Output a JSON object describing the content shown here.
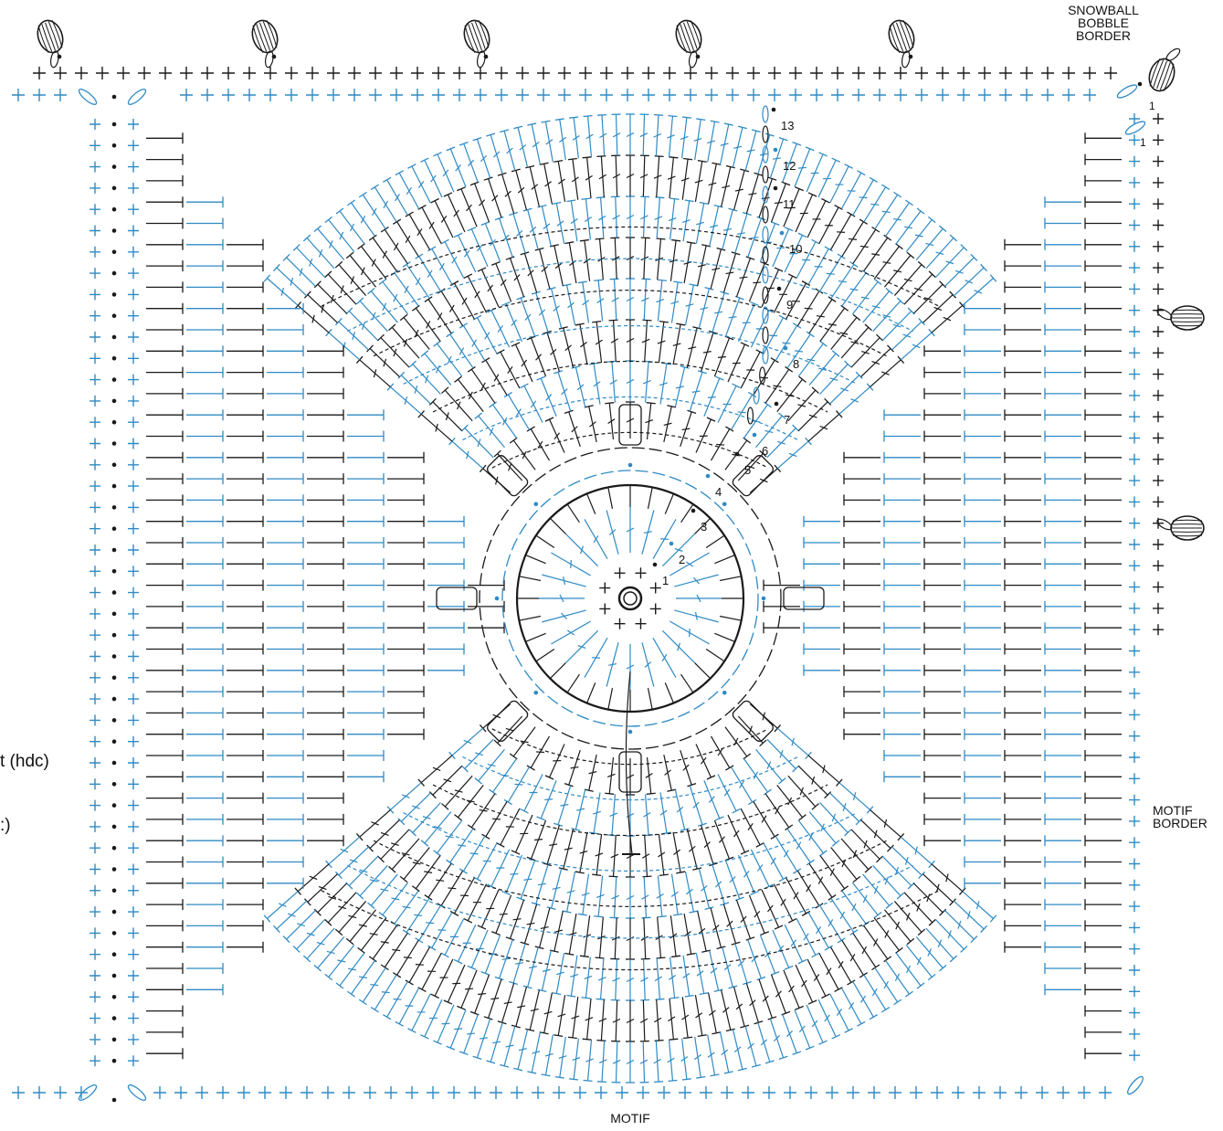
{
  "labels": {
    "snowball_border": "SNOWBALL\nBOBBLE\nBORDER",
    "motif_border": "MOTIF\nBORDER",
    "motif": "MOTIF",
    "key_hdc": "t (hdc)",
    "key_cut": ":)"
  },
  "round_numbers": [
    "1",
    "2",
    "3",
    "4",
    "5",
    "6",
    "7",
    "8",
    "9",
    "10",
    "11",
    "12",
    "13"
  ],
  "border_round_numbers": [
    "1",
    "1"
  ],
  "colors": {
    "black": "#1a1a1a",
    "blue": "#2f8ac4",
    "background": "#ffffff"
  },
  "symbols": {
    "single_crochet": "plus-mark",
    "half_double_crochet": "t-mark",
    "slip_stitch": "dot",
    "chain": "oval",
    "bobble": "snowball-bobble-icon",
    "magic_ring": "ring"
  }
}
